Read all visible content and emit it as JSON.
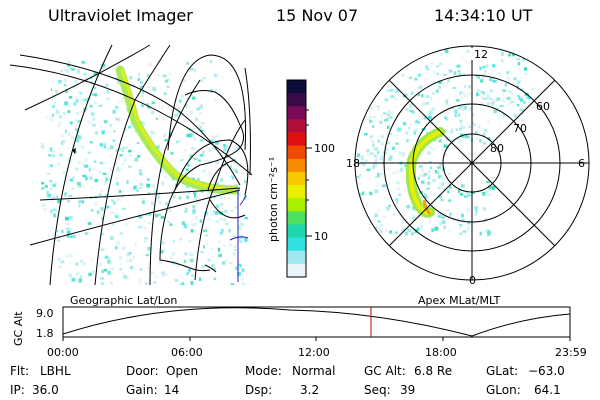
{
  "header": {
    "title": "Ultraviolet Imager",
    "date": "15 Nov 07",
    "time": "14:34:10 UT"
  },
  "colorbar": {
    "label": "photon cm⁻²s⁻¹",
    "ticks": [
      "100",
      "10"
    ],
    "colors": [
      "#0d0d3a",
      "#3a0a4a",
      "#7a0a5a",
      "#b0103a",
      "#e01010",
      "#f04a00",
      "#f88a00",
      "#f8c800",
      "#e8f000",
      "#a8f000",
      "#50e060",
      "#20d8b0",
      "#30e0e0",
      "#a0e8f0",
      "#e8f4f8"
    ]
  },
  "polar": {
    "lat_labels": [
      "60",
      "70",
      "80"
    ],
    "mlt_labels": {
      "top": "12",
      "left": "18",
      "right": "6",
      "bottom": "0"
    }
  },
  "map_caption": "Geographic Lat/Lon",
  "polar_caption": "Apex MLat/MLT",
  "timeline": {
    "ylabel": "GC Alt",
    "yticks": [
      "9.0",
      "1.8"
    ],
    "xticks": [
      "00:00",
      "06:00",
      "12:00",
      "18:00",
      "23:59"
    ],
    "current_time_hours": 14.569
  },
  "info": {
    "row1": [
      {
        "label": "Flt:",
        "value": "LBHL"
      },
      {
        "label": "Door:",
        "value": "Open"
      },
      {
        "label": "Mode:",
        "value": "Normal"
      },
      {
        "label": "GC Alt:",
        "value": "6.8 Re"
      },
      {
        "label": "GLat:",
        "value": "−63.0"
      }
    ],
    "row2": [
      {
        "label": "IP:",
        "value": "36.0"
      },
      {
        "label": "Gain:",
        "value": "14"
      },
      {
        "label": "Dsp:",
        "value": "3.2"
      },
      {
        "label": "Seq:",
        "value": "39"
      },
      {
        "label": "GLon:",
        "value": "64.1"
      }
    ]
  },
  "accent": {
    "time_marker": "#c00000",
    "coast_blue": "#2020c0"
  }
}
